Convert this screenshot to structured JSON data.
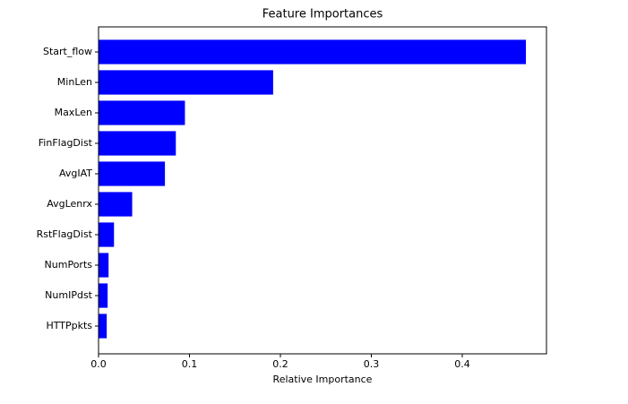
{
  "chart_data": {
    "type": "barh",
    "title": "Feature Importances",
    "xlabel": "Relative Importance",
    "categories": [
      "Start_flow",
      "MinLen",
      "MaxLen",
      "FinFlagDist",
      "AvgIAT",
      "AvgLenrx",
      "RstFlagDist",
      "NumPorts",
      "NumIPdst",
      "HTTPpkts"
    ],
    "values": [
      0.47,
      0.192,
      0.095,
      0.085,
      0.073,
      0.037,
      0.017,
      0.011,
      0.01,
      0.009
    ],
    "color": "#0000ff",
    "xlim": [
      0,
      0.4926
    ],
    "xticks": [
      {
        "value": 0,
        "label": "0.0"
      },
      0.1,
      0.2,
      0.3,
      0.4
    ]
  }
}
